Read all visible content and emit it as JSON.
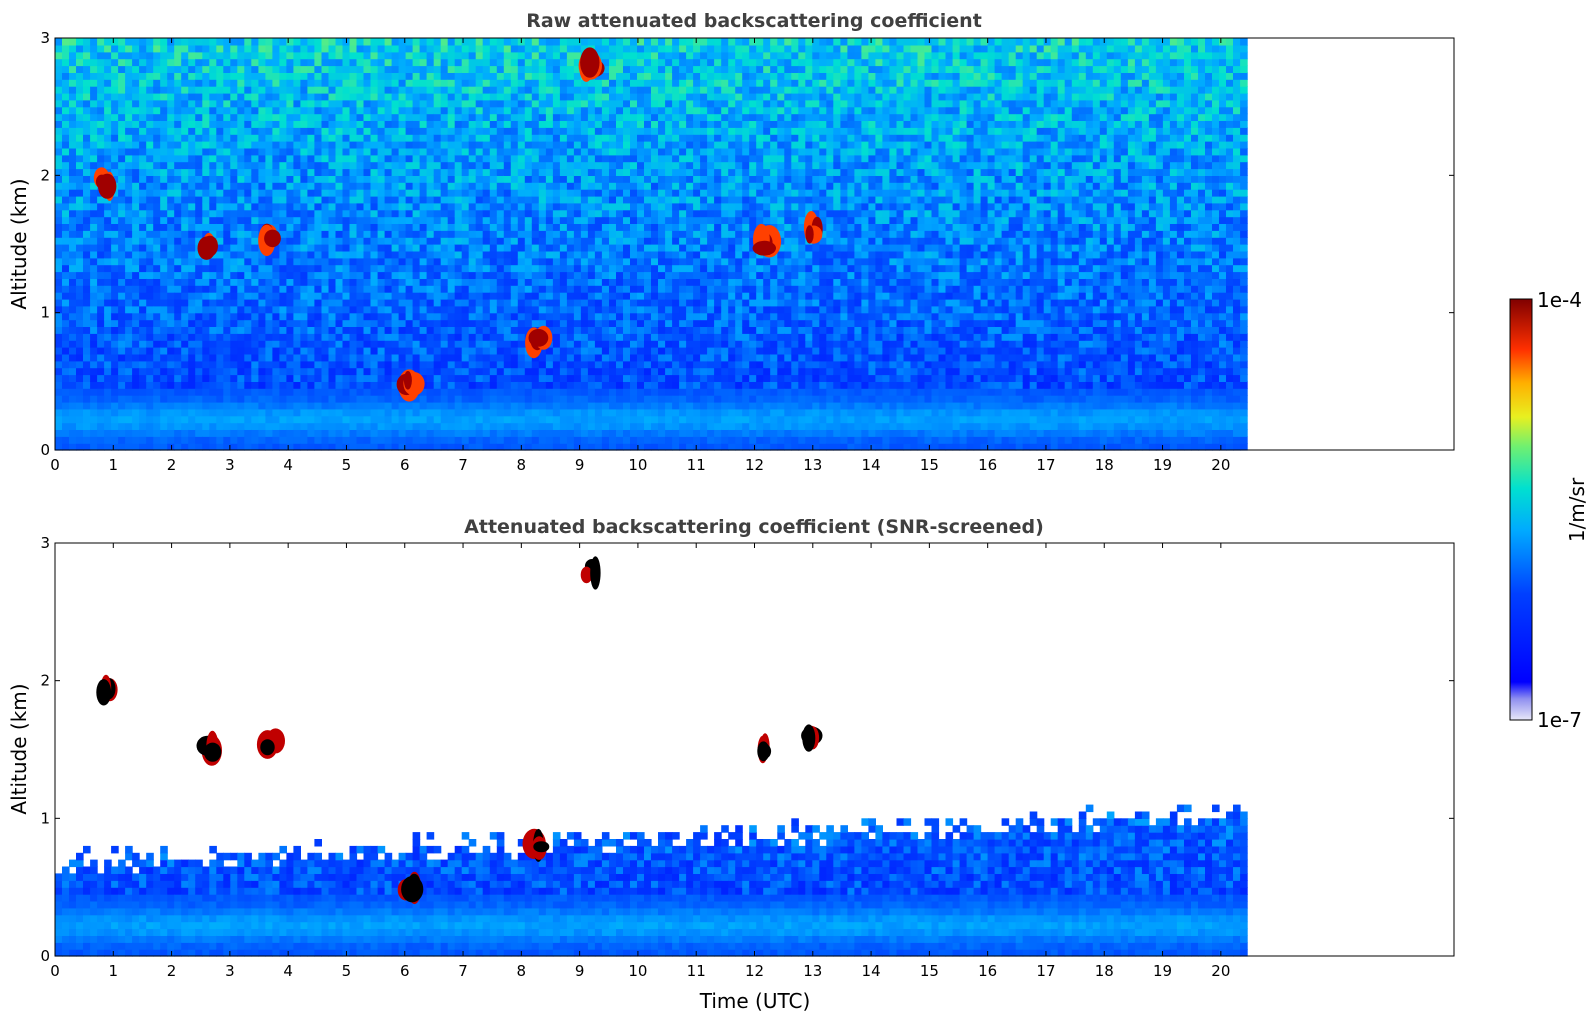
{
  "chart_data": [
    {
      "type": "heatmap",
      "title": "Raw attenuated backscattering coefficient",
      "xlabel": "",
      "ylabel": "Altitude (km)",
      "xlim": [
        0,
        24
      ],
      "ylim": [
        0,
        3
      ],
      "data_x_range": [
        0,
        20.45
      ],
      "x_ticks": [
        0,
        1,
        2,
        3,
        4,
        5,
        6,
        7,
        8,
        9,
        10,
        11,
        12,
        13,
        14,
        15,
        16,
        17,
        18,
        19,
        20
      ],
      "y_ticks": [
        0,
        1,
        2,
        3
      ],
      "grid": false,
      "screened": false,
      "features": [
        {
          "t": 0.88,
          "z": 1.95,
          "kind": "cloud"
        },
        {
          "t": 2.65,
          "z": 1.5,
          "kind": "cloud"
        },
        {
          "t": 3.7,
          "z": 1.55,
          "kind": "cloud"
        },
        {
          "t": 6.1,
          "z": 0.5,
          "kind": "cloud"
        },
        {
          "t": 8.3,
          "z": 0.8,
          "kind": "cloud"
        },
        {
          "t": 9.2,
          "z": 2.8,
          "kind": "cloud"
        },
        {
          "t": 12.2,
          "z": 1.5,
          "kind": "cloud"
        },
        {
          "t": 13.0,
          "z": 1.6,
          "kind": "cloud"
        }
      ]
    },
    {
      "type": "heatmap",
      "title": "Attenuated backscattering coefficient (SNR-screened)",
      "xlabel": "Time (UTC)",
      "ylabel": "Altitude (km)",
      "xlim": [
        0,
        24
      ],
      "ylim": [
        0,
        3
      ],
      "data_x_range": [
        0,
        20.45
      ],
      "x_ticks": [
        0,
        1,
        2,
        3,
        4,
        5,
        6,
        7,
        8,
        9,
        10,
        11,
        12,
        13,
        14,
        15,
        16,
        17,
        18,
        19,
        20
      ],
      "y_ticks": [
        0,
        1,
        2,
        3
      ],
      "grid": false,
      "screened": true
    }
  ],
  "colorbar": {
    "label": "1/m/sr",
    "max_label": "1e-4",
    "min_label": "1e-7",
    "scale": "log",
    "range": [
      1e-07,
      0.0001
    ],
    "colormap": "jet"
  }
}
